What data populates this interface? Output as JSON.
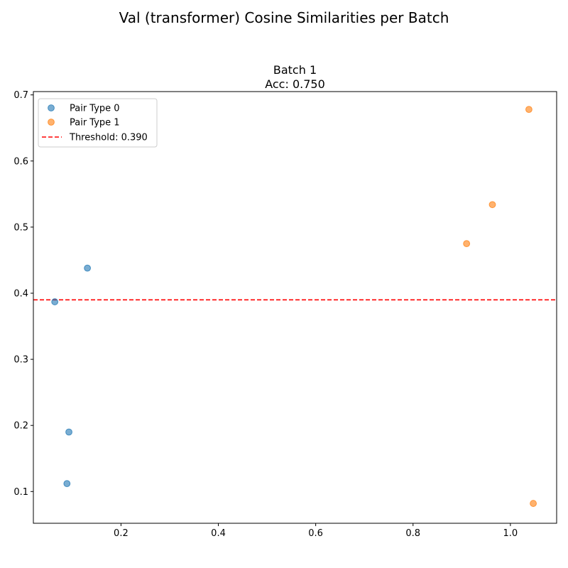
{
  "figure": {
    "suptitle": "Val (transformer) Cosine Similarities per Batch"
  },
  "chart_data": {
    "type": "scatter",
    "title_line1": "Batch 1",
    "title_line2": "Acc: 0.750",
    "xlabel": "",
    "ylabel": "",
    "xlim": [
      0.02,
      1.095
    ],
    "ylim": [
      0.052,
      0.705
    ],
    "x_ticks": [
      0.2,
      0.4,
      0.6,
      0.8,
      1.0
    ],
    "x_tick_labels": [
      "0.2",
      "0.4",
      "0.6",
      "0.8",
      "1.0"
    ],
    "y_ticks": [
      0.1,
      0.2,
      0.3,
      0.4,
      0.5,
      0.6,
      0.7
    ],
    "y_tick_labels": [
      "0.1",
      "0.2",
      "0.3",
      "0.4",
      "0.5",
      "0.6",
      "0.7"
    ],
    "grid": false,
    "legend_position": "upper-left",
    "series": [
      {
        "name": "Pair Type 0",
        "color": "#1f77b4",
        "points": [
          {
            "x": 0.064,
            "y": 0.387
          },
          {
            "x": 0.131,
            "y": 0.438
          },
          {
            "x": 0.093,
            "y": 0.19
          },
          {
            "x": 0.089,
            "y": 0.112
          }
        ]
      },
      {
        "name": "Pair Type 1",
        "color": "#ff7f0e",
        "points": [
          {
            "x": 1.038,
            "y": 0.678
          },
          {
            "x": 0.963,
            "y": 0.534
          },
          {
            "x": 0.91,
            "y": 0.475
          },
          {
            "x": 1.047,
            "y": 0.082
          }
        ]
      }
    ],
    "threshold": {
      "label": "Threshold: 0.390",
      "value": 0.39,
      "color": "#ff0000",
      "style": "dashed"
    }
  }
}
